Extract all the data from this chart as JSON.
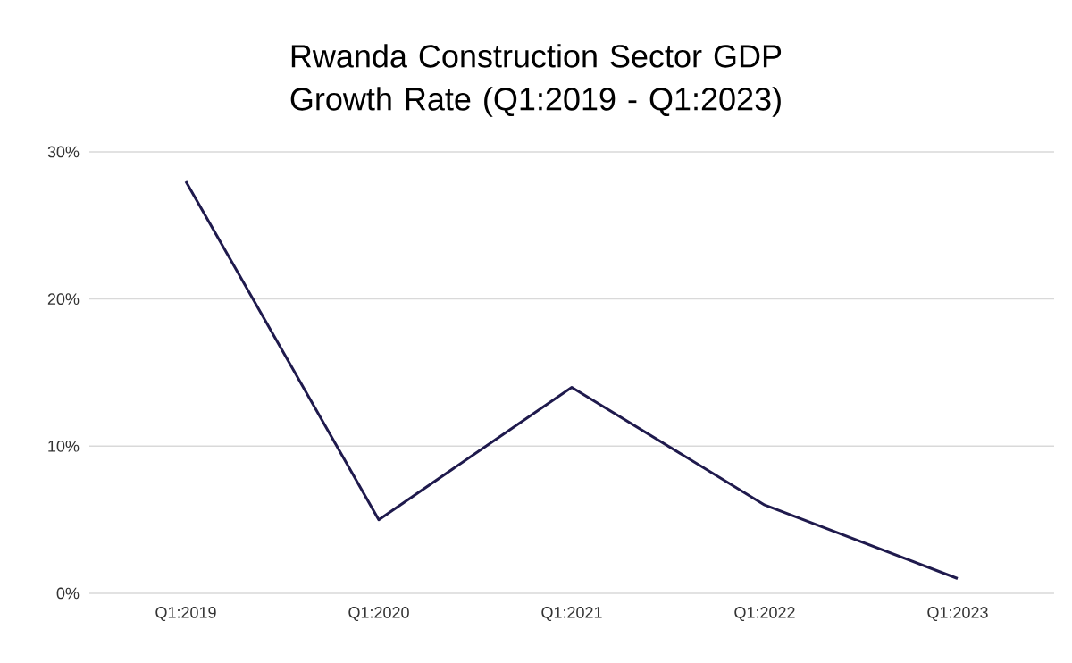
{
  "chart_data": {
    "type": "line",
    "title": "Rwanda Construction Sector GDP Growth Rate (Q1:2019 - Q1:2023)",
    "categories": [
      "Q1:2019",
      "Q1:2020",
      "Q1:2021",
      "Q1:2022",
      "Q1:2023"
    ],
    "series": [
      {
        "color": "#1f1a4d",
        "values": [
          28,
          5,
          14,
          6,
          1
        ]
      }
    ],
    "ylim": [
      0,
      30
    ],
    "yticks": [
      {
        "value": 0,
        "label": "0%"
      },
      {
        "value": 10,
        "label": "10%"
      },
      {
        "value": 20,
        "label": "20%"
      },
      {
        "value": 30,
        "label": "30%"
      }
    ],
    "grid": "y",
    "marker": "none",
    "line_style": "solid"
  }
}
